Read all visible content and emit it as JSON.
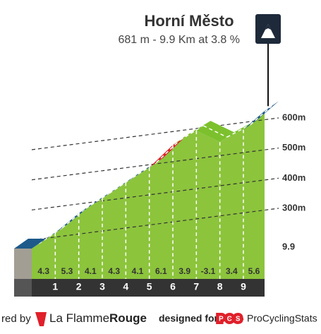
{
  "chart_data": {
    "type": "profile",
    "title": "Horní Město",
    "subtitle": "681 m - 9.9 Km at 3.8 %",
    "gradients": [
      4.3,
      5.3,
      4.1,
      4.3,
      4.1,
      6.1,
      3.9,
      -3.1,
      3.4,
      5.6
    ],
    "colors": [
      "#1d5a8a",
      "#1d5a8a",
      "#1d5a8a",
      "#1d5a8a",
      "#1d5a8a",
      "#e0202a",
      "#7cc12d",
      "#7cc12d",
      "#7cc12d",
      "#1d5a8a"
    ],
    "xlim": [
      0,
      9.9
    ],
    "xticks": [
      1,
      2,
      3,
      4,
      5,
      6,
      7,
      8,
      9,
      9.9
    ],
    "ylim": [
      200,
      700
    ],
    "yticks": [
      {
        "value": 300,
        "label": "300m"
      },
      {
        "value": 400,
        "label": "400m"
      },
      {
        "value": 500,
        "label": "500m"
      },
      {
        "value": 600,
        "label": "600m"
      }
    ],
    "grid": true
  },
  "footer": {
    "powered_by": "red by",
    "brand_1": "La Flamme",
    "brand_2": "Rouge",
    "designed_for": "designed for",
    "pcs": "PCS",
    "site": "ProCyclingStats"
  }
}
